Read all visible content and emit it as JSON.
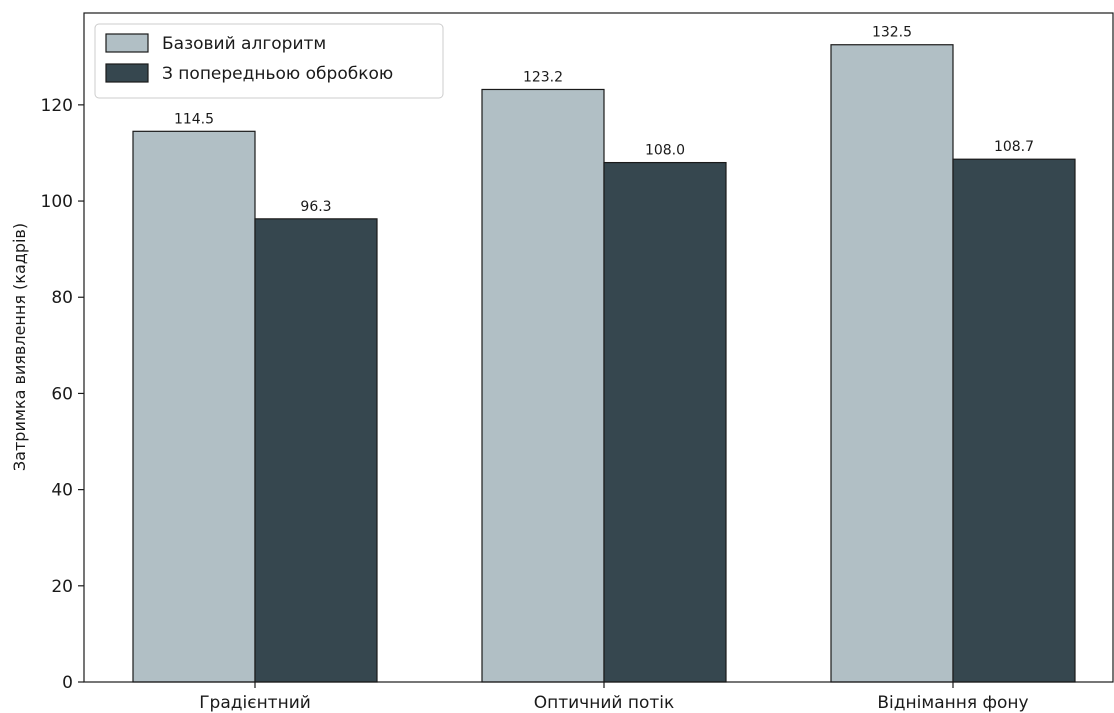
{
  "chart_data": {
    "type": "bar",
    "title": "",
    "xlabel": "",
    "ylabel": "Затримка виявлення (кадрів)",
    "categories": [
      "Градієнтний",
      "Оптичний потік",
      "Віднімання фону"
    ],
    "series": [
      {
        "name": "Базовий алгоритм",
        "values": [
          114.5,
          123.2,
          132.5
        ],
        "color": "#b1bfc5"
      },
      {
        "name": "З попередньою обробкою",
        "values": [
          96.3,
          108.0,
          108.7
        ],
        "color": "#36474f"
      }
    ],
    "value_labels": [
      [
        "114.5",
        "123.2",
        "132.5"
      ],
      [
        "96.3",
        "108.0",
        "108.7"
      ]
    ],
    "ylim": [
      0,
      139.1
    ],
    "yticks": [
      0,
      20,
      40,
      60,
      80,
      100,
      120
    ],
    "grid": false,
    "legend_position": "top-left",
    "edge_color": "#1a1a1a"
  }
}
